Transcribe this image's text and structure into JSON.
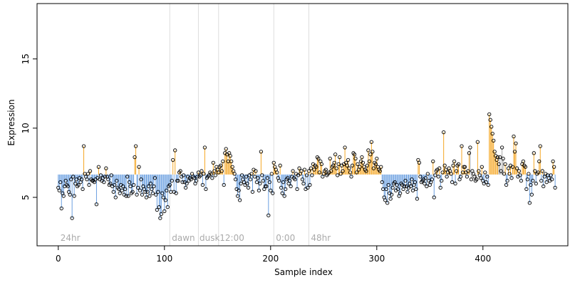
{
  "chart_data": {
    "type": "scatter",
    "xlabel": "Sample index",
    "ylabel": "Expression",
    "xlim": [
      -20,
      480
    ],
    "ylim": [
      1.5,
      19
    ],
    "x_ticks": [
      0,
      100,
      200,
      300,
      400
    ],
    "y_ticks": [
      5,
      10,
      15
    ],
    "baseline": 6.65,
    "grid": false,
    "colors": {
      "above": "#f5a623",
      "below": "#6a9fe0",
      "highlight": "#aaaaaa",
      "separator": "#dddddd",
      "annotation": "#aaaaaa",
      "points": "#000000"
    },
    "annotations": [
      {
        "label": "24hr",
        "x": 2
      },
      {
        "label": "dawn",
        "x": 107
      },
      {
        "label": "dusk",
        "x": 133
      },
      {
        "label": "12:00",
        "x": 152
      },
      {
        "label": "0:00",
        "x": 205
      },
      {
        "label": "48hr",
        "x": 238
      }
    ],
    "separators": [
      105,
      132,
      151,
      203,
      236
    ],
    "highlight_ranges": [
      [
        388,
        394
      ],
      [
        415,
        420
      ]
    ],
    "values": [
      5.7,
      5.5,
      6.1,
      4.2,
      5.3,
      5.1,
      5.8,
      6.2,
      5.9,
      5.8,
      5.4,
      5.2,
      6.3,
      3.5,
      6.5,
      5.1,
      6.0,
      6.3,
      5.8,
      5.9,
      6.4,
      6.1,
      6.3,
      5.6,
      8.7,
      6.7,
      6.5,
      6.3,
      6.7,
      5.9,
      6.9,
      6.3,
      6.2,
      6.2,
      6.1,
      6.3,
      4.5,
      6.4,
      7.2,
      6.3,
      6.6,
      6.2,
      6.4,
      6.1,
      6.5,
      7.1,
      6.5,
      6.3,
      5.9,
      6.0,
      6.6,
      5.8,
      5.4,
      5.9,
      5.0,
      6.2,
      5.7,
      5.6,
      5.3,
      5.9,
      5.5,
      5.8,
      5.2,
      5.6,
      5.1,
      6.5,
      5.1,
      6.1,
      5.8,
      5.3,
      5.4,
      5.9,
      7.9,
      8.7,
      5.2,
      5.7,
      7.2,
      5.5,
      6.3,
      5.2,
      5.8,
      5.6,
      5.4,
      5.0,
      5.4,
      5.8,
      5.1,
      6.0,
      5.6,
      5.3,
      5.8,
      6.4,
      5.2,
      4.1,
      5.4,
      4.3,
      3.5,
      3.8,
      5.3,
      5.0,
      4.0,
      4.8,
      5.5,
      4.3,
      5.8,
      5.9,
      5.4,
      6.2,
      7.7,
      5.4,
      8.4,
      5.3,
      6.2,
      6.2,
      6.8,
      6.9,
      6.5,
      6.1,
      6.6,
      6.1,
      5.7,
      6.0,
      6.5,
      6.2,
      6.4,
      6.3,
      6.7,
      6.5,
      6.4,
      6.0,
      6.2,
      6.5,
      6.8,
      6.5,
      6.6,
      6.9,
      5.9,
      6.7,
      8.6,
      5.6,
      6.4,
      6.5,
      6.6,
      6.8,
      6.7,
      6.4,
      7.5,
      6.9,
      6.6,
      7.2,
      7.0,
      6.8,
      7.2,
      7.3,
      6.9,
      7.6,
      5.9,
      8.2,
      8.5,
      8.1,
      7.6,
      8.2,
      8.0,
      7.6,
      7.2,
      6.9,
      6.7,
      6.3,
      5.6,
      5.1,
      5.5,
      4.8,
      6.0,
      6.6,
      6.3,
      6.1,
      5.9,
      6.5,
      6.0,
      5.7,
      6.6,
      6.3,
      6.7,
      5.4,
      7.0,
      6.5,
      6.9,
      6.1,
      6.4,
      5.5,
      6.0,
      8.3,
      6.6,
      6.2,
      5.6,
      5.8,
      5.8,
      6.4,
      3.7,
      6.1,
      5.5,
      6.7,
      5.3,
      7.5,
      7.2,
      7.0,
      6.8,
      6.4,
      6.2,
      7.3,
      5.7,
      5.3,
      6.1,
      5.1,
      5.6,
      6.3,
      6.4,
      6.0,
      6.2,
      5.8,
      6.5,
      6.9,
      6.4,
      6.3,
      6.7,
      5.6,
      6.6,
      7.1,
      6.7,
      6.9,
      6.3,
      6.0,
      7.0,
      5.6,
      6.6,
      5.7,
      6.9,
      5.9,
      7.1,
      6.6,
      7.4,
      7.0,
      7.3,
      7.2,
      7.9,
      7.8,
      6.8,
      7.6,
      7.4,
      6.5,
      6.7,
      6.9,
      7.0,
      6.6,
      6.7,
      6.8,
      7.8,
      6.9,
      7.2,
      7.3,
      7.5,
      8.1,
      7.1,
      6.6,
      7.4,
      7.9,
      6.7,
      7.3,
      6.9,
      7.4,
      8.6,
      7.5,
      7.3,
      7.7,
      7.1,
      6.8,
      6.5,
      7.3,
      8.2,
      8.1,
      7.8,
      6.8,
      7.4,
      7.0,
      7.2,
      7.6,
      7.9,
      7.5,
      7.2,
      7.0,
      6.9,
      7.3,
      8.4,
      7.6,
      8.1,
      9.0,
      8.3,
      7.1,
      7.5,
      7.4,
      7.8,
      7.2,
      7.0,
      6.9,
      7.2,
      6.1,
      5.6,
      5.0,
      4.8,
      5.6,
      4.6,
      5.9,
      5.3,
      4.9,
      5.2,
      5.7,
      6.0,
      6.1,
      5.5,
      5.9,
      5.6,
      5.1,
      5.3,
      6.0,
      5.9,
      5.6,
      5.8,
      6.2,
      5.8,
      5.4,
      5.7,
      6.0,
      5.8,
      6.3,
      5.5,
      5.9,
      6.1,
      5.6,
      4.9,
      7.7,
      7.5,
      6.5,
      6.1,
      6.2,
      6.3,
      6.0,
      6.4,
      5.8,
      6.7,
      6.2,
      5.9,
      6.1,
      6.3,
      7.6,
      5.0,
      6.6,
      6.9,
      7.0,
      6.5,
      7.1,
      5.7,
      6.2,
      6.8,
      9.7,
      7.3,
      7.0,
      6.5,
      6.8,
      7.1,
      6.9,
      6.7,
      6.1,
      7.3,
      7.6,
      6.0,
      6.9,
      7.3,
      7.4,
      6.3,
      6.5,
      8.7,
      6.8,
      7.2,
      7.2,
      6.8,
      6.5,
      6.9,
      8.2,
      8.6,
      6.3,
      6.9,
      6.7,
      6.5,
      6.2,
      6.3,
      9.0,
      6.9,
      6.6,
      6.4,
      7.2,
      6.2,
      6.0,
      6.8,
      6.1,
      6.5,
      5.9,
      11.0,
      10.6,
      10.1,
      9.6,
      9.1,
      8.3,
      8.0,
      7.7,
      7.9,
      7.4,
      7.9,
      6.9,
      8.6,
      7.8,
      6.7,
      7.4,
      5.9,
      6.2,
      7.1,
      6.7,
      7.3,
      6.4,
      7.2,
      9.4,
      8.3,
      8.9,
      7.1,
      6.5,
      6.9,
      6.6,
      6.2,
      7.4,
      7.6,
      7.3,
      7.2,
      5.6,
      6.3,
      6.7,
      4.6,
      5.9,
      5.2,
      6.2,
      8.2,
      6.9,
      6.0,
      6.7,
      6.8,
      7.6,
      8.7,
      6.2,
      6.9,
      5.8,
      6.5,
      6.7,
      6.1,
      6.6,
      6.4,
      6.2,
      6.6,
      6.3,
      7.6,
      7.2,
      5.7
    ]
  }
}
